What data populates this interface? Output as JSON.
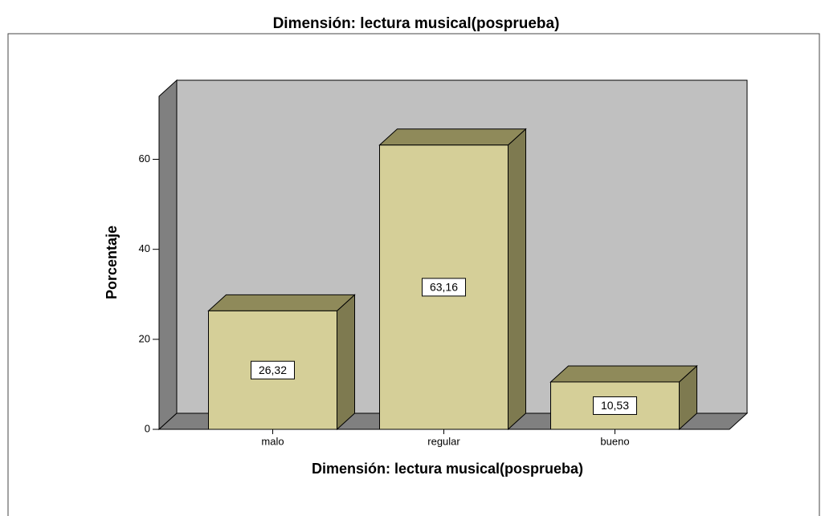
{
  "chart_data": {
    "type": "bar3d",
    "title": "Dimensión: lectura musical(posprueba)",
    "x_label": "Dimensión: lectura musical(posprueba)",
    "y_label": "Porcentaje",
    "categories": [
      "malo",
      "regular",
      "bueno"
    ],
    "values": [
      26.32,
      63.16,
      10.53
    ],
    "value_labels": [
      "26,32",
      "63,16",
      "10,53"
    ],
    "color": "#d5cf98",
    "ylim": [
      0,
      74
    ],
    "yticks": [
      0,
      20,
      40,
      60
    ],
    "grid": false
  }
}
